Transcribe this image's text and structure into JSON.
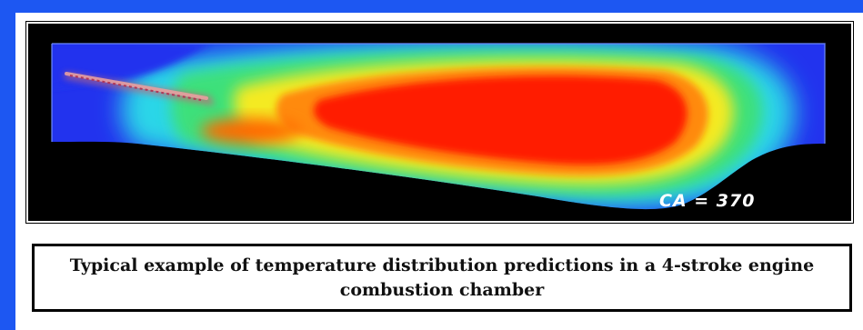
{
  "figure": {
    "overlay_label": "CA = 370",
    "caption": "Typical example of temperature distribution predictions in a 4-stroke engine combustion chamber"
  },
  "colors": {
    "background": "#1d57f2",
    "panel": "#ffffff",
    "chamber_outside": "#000000",
    "cold": "#2233ee",
    "hot": "#ff1a00"
  }
}
